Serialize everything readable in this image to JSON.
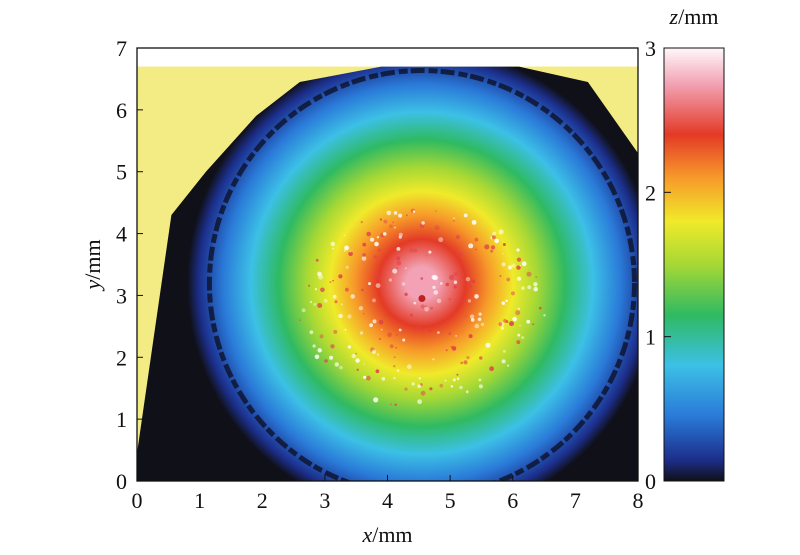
{
  "chart_data": {
    "type": "heatmap",
    "title": "",
    "xlabel": "x/mm",
    "ylabel": "y/mm",
    "xlabel_var": "x",
    "ylabel_var": "y",
    "axis_unit": "/mm",
    "xlim": [
      0,
      8
    ],
    "ylim": [
      0,
      7
    ],
    "xticks": [
      "0",
      "1",
      "2",
      "3",
      "4",
      "5",
      "6",
      "7",
      "8"
    ],
    "yticks": [
      "0",
      "1",
      "2",
      "3",
      "4",
      "5",
      "6",
      "7"
    ],
    "grid": false,
    "colorbar": {
      "label": "z/mm",
      "label_var": "z",
      "label_unit": "/mm",
      "range": [
        0,
        3
      ],
      "ticks": [
        "0",
        "1",
        "2",
        "3"
      ],
      "colormap": [
        {
          "value": 0.0,
          "color": "#101018"
        },
        {
          "value": 0.15,
          "color": "#1c2f8c"
        },
        {
          "value": 0.45,
          "color": "#2a7ad8"
        },
        {
          "value": 0.8,
          "color": "#3cc0e6"
        },
        {
          "value": 1.15,
          "color": "#2fba62"
        },
        {
          "value": 1.5,
          "color": "#a6d835"
        },
        {
          "value": 1.8,
          "color": "#f0ea2a"
        },
        {
          "value": 2.1,
          "color": "#f79a2a"
        },
        {
          "value": 2.4,
          "color": "#e33a26"
        },
        {
          "value": 2.75,
          "color": "#f2a2b4"
        },
        {
          "value": 3.0,
          "color": "#fff8fb"
        }
      ]
    },
    "surface": {
      "center": [
        4.55,
        3.2
      ],
      "peak_z": 2.95,
      "radius_z0": 3.75,
      "background_color": "#f3ec84",
      "data_y_max": 6.7
    }
  }
}
